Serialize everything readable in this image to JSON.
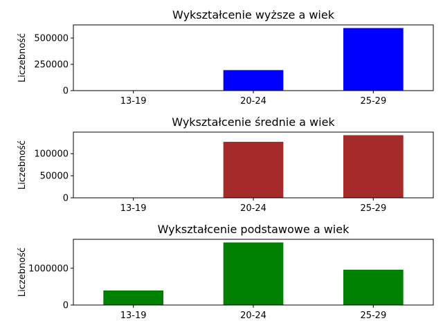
{
  "chart_data": [
    {
      "type": "bar",
      "title": "Wykształcenie wyższe a wiek",
      "xlabel": "",
      "ylabel": "Liczebność",
      "categories": [
        "13-19",
        "20-24",
        "25-29"
      ],
      "values": [
        0,
        195000,
        595000
      ],
      "ylim": [
        0,
        625000
      ],
      "yticks": [
        0,
        250000,
        500000
      ],
      "color": "#0000ff",
      "grid": false
    },
    {
      "type": "bar",
      "title": "Wykształcenie średnie a wiek",
      "xlabel": "",
      "ylabel": "Liczebność",
      "categories": [
        "13-19",
        "20-24",
        "25-29"
      ],
      "values": [
        0,
        127000,
        142000
      ],
      "ylim": [
        0,
        149000
      ],
      "yticks": [
        0,
        50000,
        100000
      ],
      "color": "#a52a2a",
      "grid": false
    },
    {
      "type": "bar",
      "title": "Wykształcenie podstawowe a wiek",
      "xlabel": "",
      "ylabel": "Liczebność",
      "categories": [
        "13-19",
        "20-24",
        "25-29"
      ],
      "values": [
        395000,
        1700000,
        960000
      ],
      "ylim": [
        0,
        1785000
      ],
      "yticks": [
        0,
        1000000
      ],
      "color": "#008000",
      "grid": false
    }
  ]
}
